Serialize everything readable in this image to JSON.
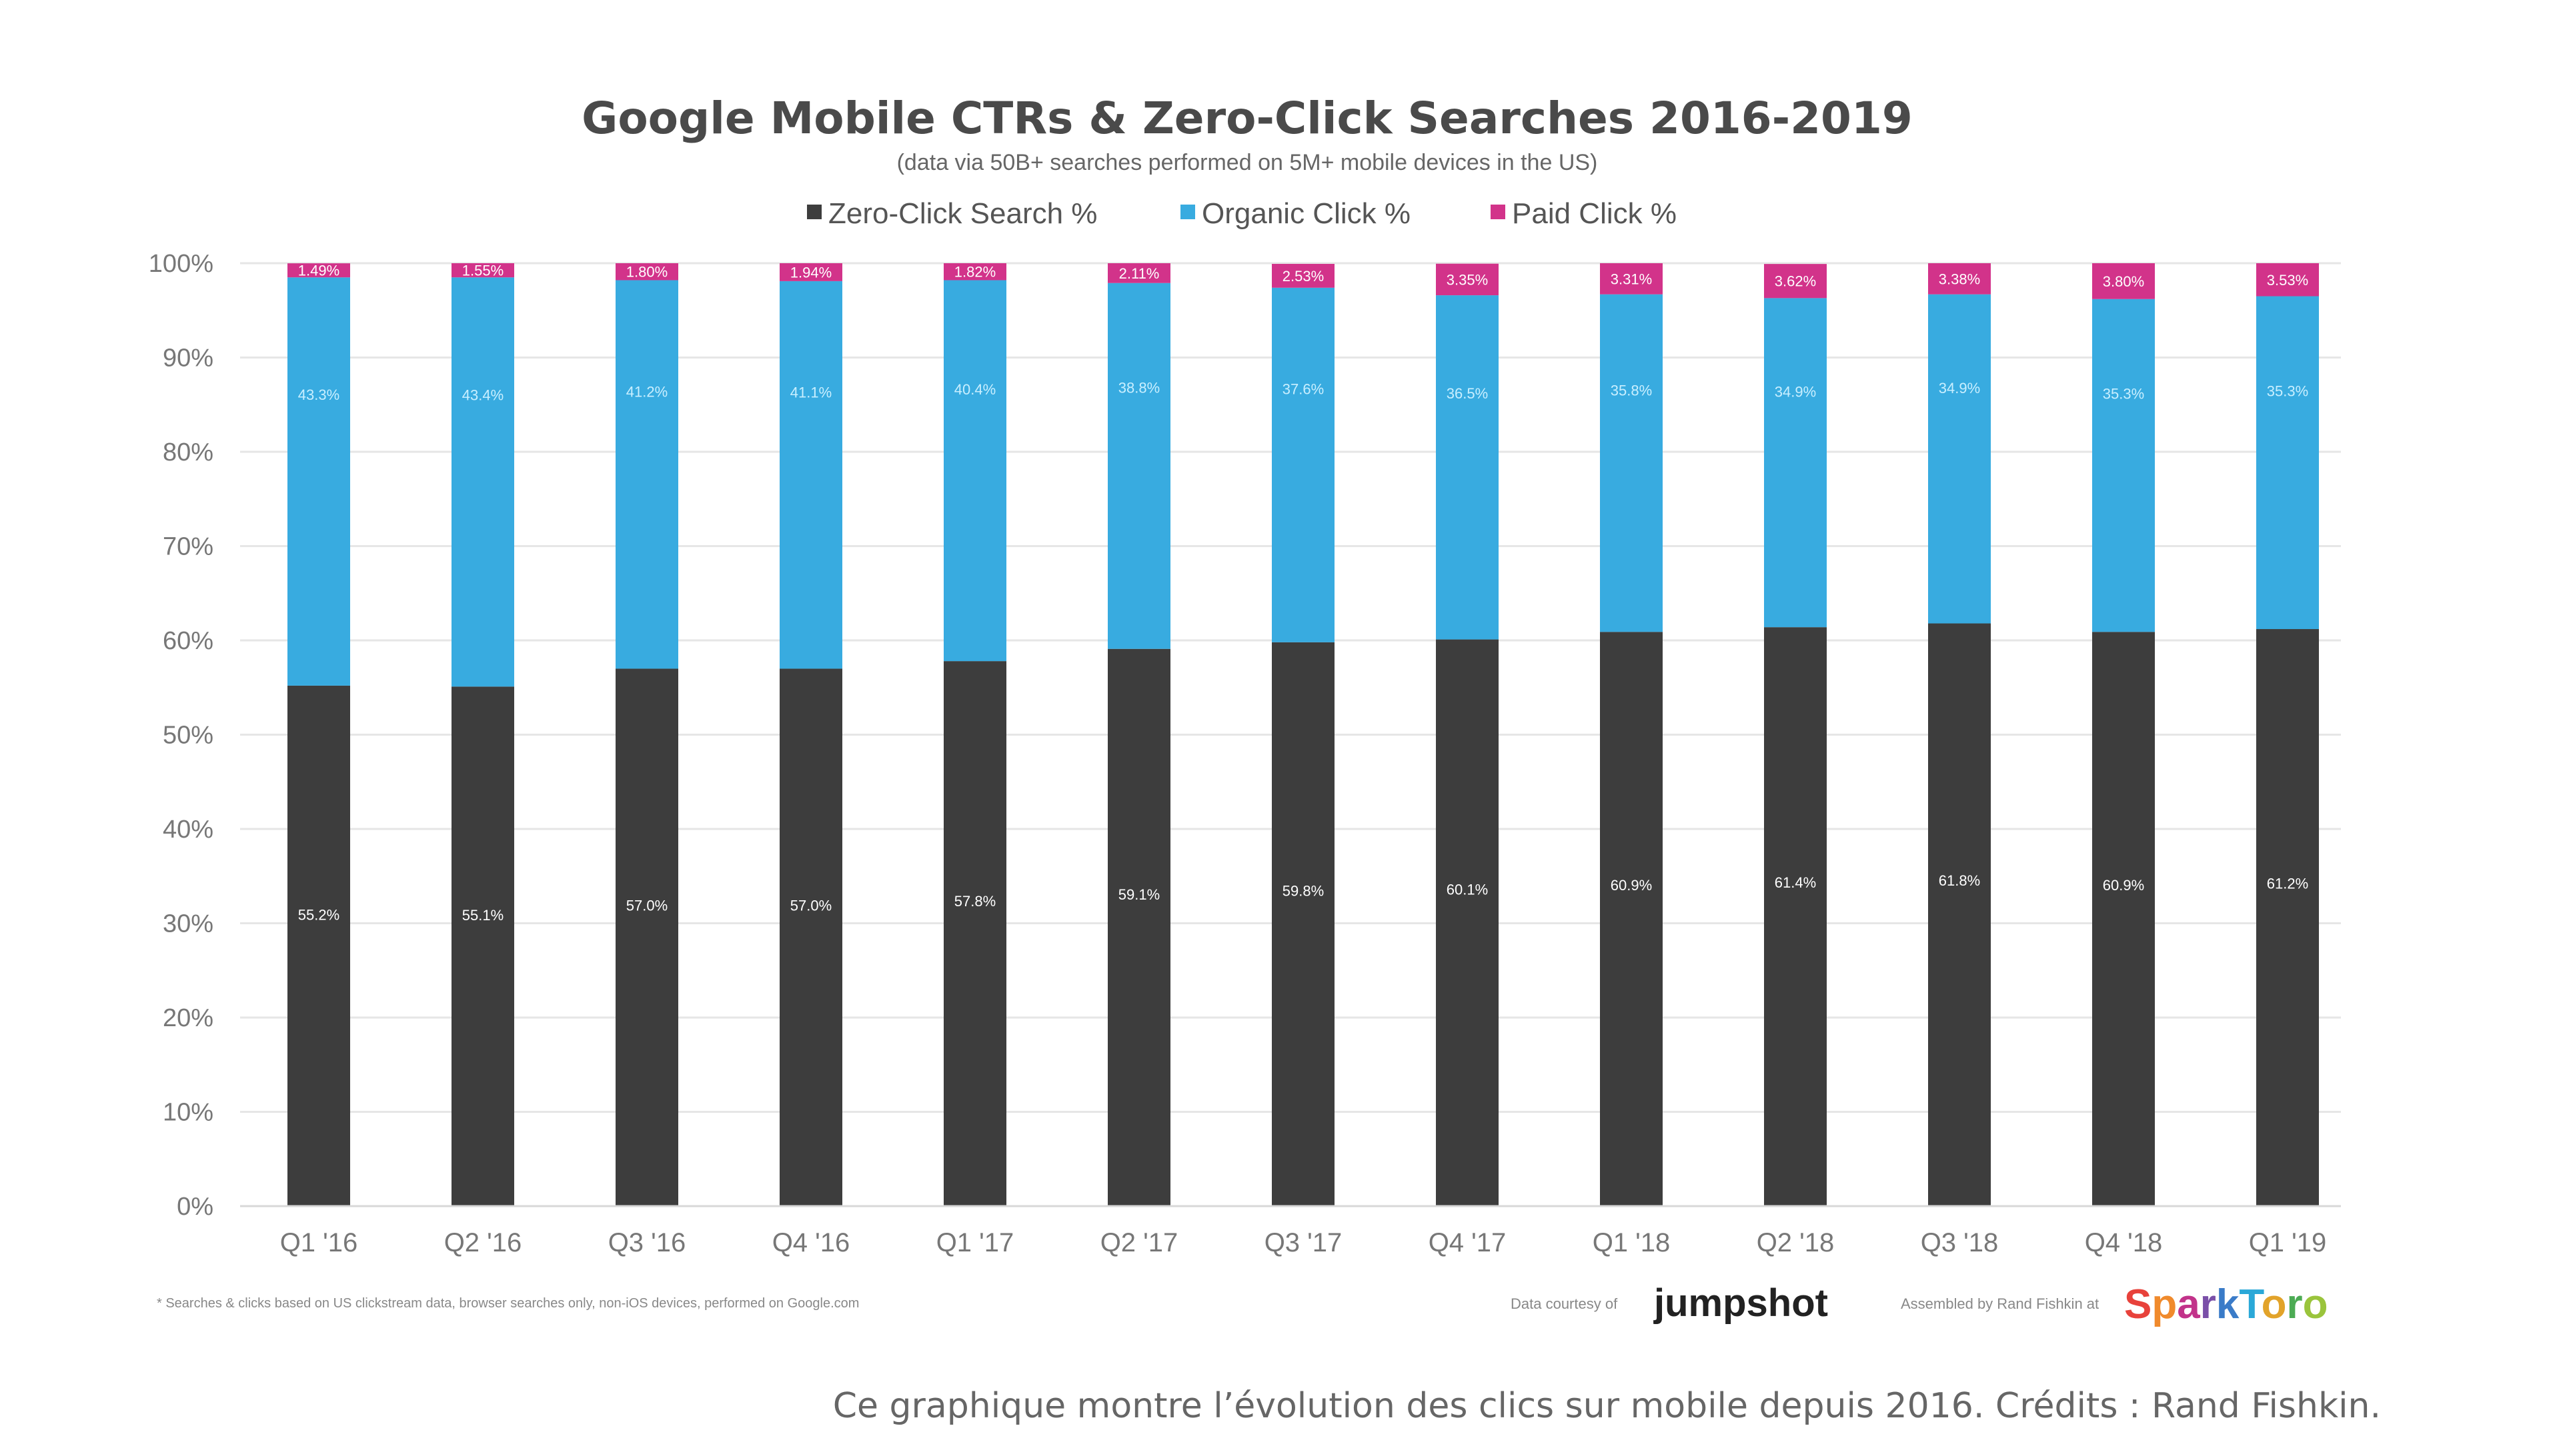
{
  "chart_data": {
    "type": "bar",
    "stacked": true,
    "title": "Google Mobile CTRs & Zero-Click Searches 2016-2019",
    "subtitle": "(data via 50B+ searches performed on 5M+ mobile devices in the US)",
    "xlabel": "",
    "ylabel": "",
    "ylim": [
      0,
      100
    ],
    "yticks": [
      "0%",
      "10%",
      "20%",
      "30%",
      "40%",
      "50%",
      "60%",
      "70%",
      "80%",
      "90%",
      "100%"
    ],
    "grid": true,
    "legend_position": "top-center",
    "categories": [
      "Q1 '16",
      "Q2 '16",
      "Q3 '16",
      "Q4 '16",
      "Q1 '17",
      "Q2 '17",
      "Q3 '17",
      "Q4 '17",
      "Q1 '18",
      "Q2 '18",
      "Q3 '18",
      "Q4 '18",
      "Q1 '19"
    ],
    "series": [
      {
        "name": "Zero-Click Search %",
        "color": "#3d3d3d",
        "values": [
          55.2,
          55.1,
          57.0,
          57.0,
          57.8,
          59.1,
          59.8,
          60.1,
          60.9,
          61.4,
          61.8,
          60.9,
          61.2
        ],
        "labels": [
          "55.2%",
          "55.1%",
          "57.0%",
          "57.0%",
          "57.8%",
          "59.1%",
          "59.8%",
          "60.1%",
          "60.9%",
          "61.4%",
          "61.8%",
          "60.9%",
          "61.2%"
        ]
      },
      {
        "name": "Organic Click %",
        "color": "#38abe0",
        "values": [
          43.3,
          43.4,
          41.2,
          41.1,
          40.4,
          38.8,
          37.6,
          36.5,
          35.8,
          34.9,
          34.9,
          35.3,
          35.3
        ],
        "labels": [
          "43.3%",
          "43.4%",
          "41.2%",
          "41.1%",
          "40.4%",
          "38.8%",
          "37.6%",
          "36.5%",
          "35.8%",
          "34.9%",
          "34.9%",
          "35.3%",
          "35.3%"
        ]
      },
      {
        "name": "Paid Click %",
        "color": "#d2338a",
        "values": [
          1.49,
          1.55,
          1.8,
          1.94,
          1.82,
          2.11,
          2.53,
          3.35,
          3.31,
          3.62,
          3.38,
          3.8,
          3.53
        ],
        "labels": [
          "1.49%",
          "1.55%",
          "1.80%",
          "1.94%",
          "1.82%",
          "2.11%",
          "2.53%",
          "3.35%",
          "3.31%",
          "3.62%",
          "3.38%",
          "3.80%",
          "3.53%"
        ]
      }
    ],
    "footnote": "* Searches & clicks based on US clickstream data, browser searches only, non-iOS devices, performed on Google.com"
  },
  "credits": {
    "data_courtesy_label": "Data courtesy of",
    "data_courtesy_brand": "jumpshot",
    "assembled_label": "Assembled by Rand Fishkin at",
    "assembled_brand": "SparkToro"
  },
  "caption": "Ce graphique montre l’évolution des clics sur mobile depuis 2016. Crédits : Rand Fishkin."
}
